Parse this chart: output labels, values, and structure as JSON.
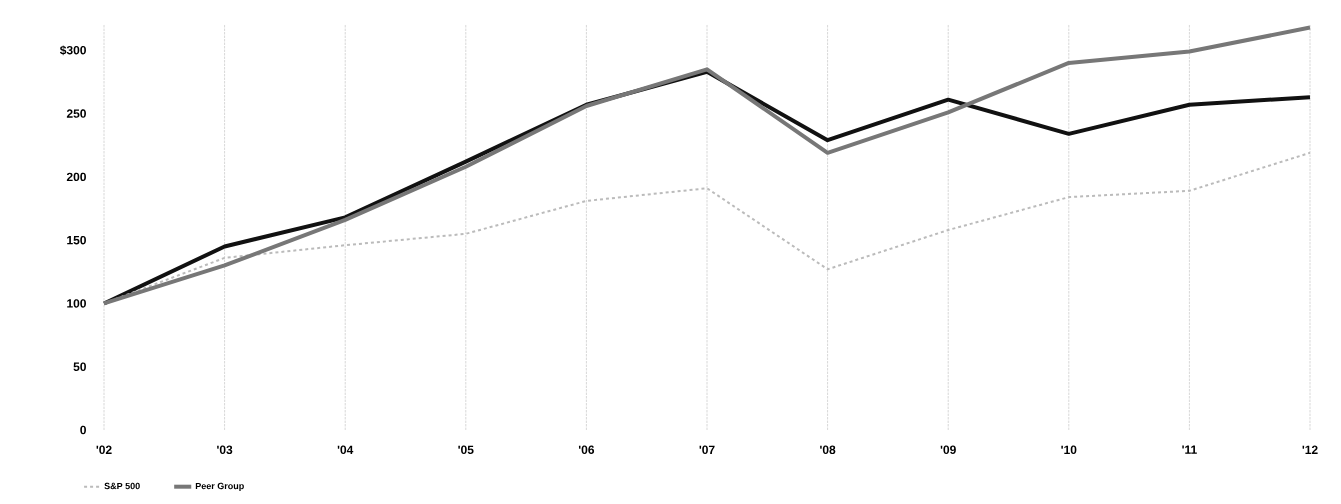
{
  "chart_data": {
    "type": "line",
    "categories": [
      "'02",
      "'03",
      "'04",
      "'05",
      "'06",
      "'07",
      "'08",
      "'09",
      "'10",
      "'11",
      "'12"
    ],
    "series": [
      {
        "color": "#111111",
        "line_style": "solid",
        "values": [
          100,
          145,
          168,
          212,
          257,
          283,
          229,
          261,
          234,
          257,
          263
        ]
      },
      {
        "name": "S&P 500",
        "color": "#bbbbbb",
        "line_style": "dashed",
        "values": [
          100,
          136,
          146,
          155,
          181,
          191,
          127,
          158,
          184,
          189,
          219
        ]
      },
      {
        "name": "Peer Group",
        "color": "#777777",
        "line_style": "solid",
        "values": [
          100,
          130,
          166,
          208,
          256,
          285,
          219,
          251,
          290,
          299,
          318
        ]
      }
    ],
    "ylim": [
      0,
      320
    ],
    "yticks": [
      0,
      50,
      100,
      150,
      200,
      250,
      {
        "value": 300,
        "label": "$300"
      }
    ],
    "grid": "x",
    "legend": "bottom left"
  }
}
